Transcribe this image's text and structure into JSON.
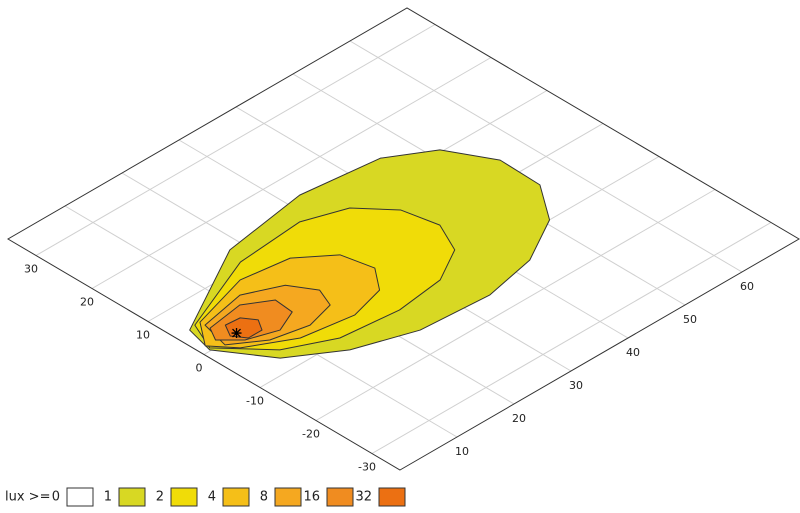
{
  "chart_data": {
    "type": "contour",
    "legend_title": "lux >=",
    "xlim": [
      0,
      70
    ],
    "ylim": [
      -35,
      35
    ],
    "xticks": [
      10,
      20,
      30,
      40,
      50,
      60
    ],
    "yticks": [
      -30,
      -20,
      -10,
      0,
      10,
      20,
      30
    ],
    "grid": true,
    "series": [
      {
        "name": "0",
        "color": "#ffffff"
      },
      {
        "name": "1",
        "color": "#d8d823",
        "x": [
          2.4,
          18.0,
          32.4,
          45.1,
          51.6,
          55.4,
          55.2,
          50.8,
          43.0,
          34.2,
          22.8,
          13.6,
          6.2,
          1.2
        ],
        "y": [
          5.0,
          13.7,
          15.9,
          14.4,
          10.4,
          3.5,
          -3.8,
          -10.0,
          -14.4,
          -16.2,
          -15.4,
          -12.2,
          -7.3,
          0.2
        ]
      },
      {
        "name": "2",
        "color": "#f0dc08",
        "x": [
          3.6,
          17.1,
          28.4,
          34.9,
          39.1,
          40.3,
          37.9,
          32.1,
          24.0,
          14.5,
          7.4,
          1.5
        ],
        "y": [
          5.3,
          10.9,
          11.8,
          9.5,
          4.7,
          -1.1,
          -6.2,
          -9.5,
          -10.5,
          -9.5,
          -6.0,
          0.5
        ]
      },
      {
        "name": "4",
        "color": "#f5bf18",
        "x": [
          4.5,
          14.4,
          22.1,
          27.0,
          28.1,
          25.2,
          19.3,
          11.0,
          4.2,
          1.4
        ],
        "y": [
          5.3,
          8.2,
          7.1,
          3.2,
          -1.9,
          -5.7,
          -7.3,
          -6.0,
          -2.2,
          1.2
        ]
      },
      {
        "name": "8",
        "color": "#f5a820",
        "x": [
          4.5,
          12.1,
          17.6,
          19.9,
          18.6,
          13.8,
          8.0,
          3.3
        ],
        "y": [
          4.4,
          5.9,
          3.4,
          -0.4,
          -3.6,
          -4.9,
          -3.6,
          -0.4
        ]
      },
      {
        "name": "16",
        "color": "#f08c20",
        "x": [
          4.5,
          10.6,
          14.5,
          14.2,
          10.4,
          5.8,
          3.2
        ],
        "y": [
          3.5,
          4.4,
          2.0,
          -1.3,
          -3.0,
          -1.4,
          1.2
        ]
      },
      {
        "name": "32",
        "color": "#ec7012",
        "x": [
          6.3,
          8.7,
          10.0,
          8.8,
          6.4,
          5.1
        ],
        "y": [
          2.6,
          2.4,
          0.5,
          -1.4,
          -1.4,
          0.5
        ]
      }
    ],
    "source": {
      "x": 6.1,
      "y": 0.4
    }
  }
}
